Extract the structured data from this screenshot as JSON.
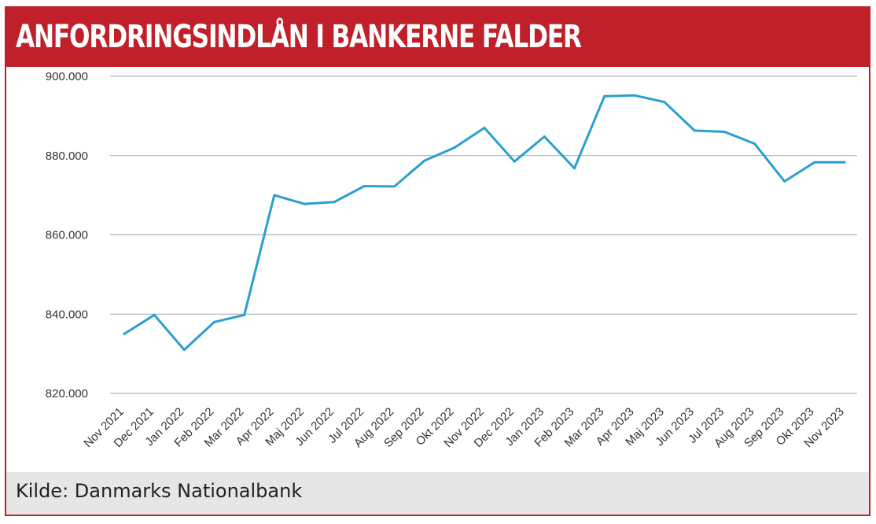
{
  "header": {
    "title": "ANFORDRINGSINDLÅN I BANKERNE FALDER"
  },
  "footer": {
    "source": "Kilde: Danmarks Nationalbank"
  },
  "colors": {
    "accent": "#c0202a",
    "line": "#2a9fd0",
    "grid": "#9aa8b0",
    "footer_bg": "#e6e6e6"
  },
  "chart_data": {
    "type": "line",
    "categories": [
      "Nov 2021",
      "Dec 2021",
      "Jan 2022",
      "Feb 2022",
      "Mar 2022",
      "Apr 2022",
      "Maj 2022",
      "Jun 2022",
      "Jul 2022",
      "Aug 2022",
      "Sep 2022",
      "Okt 2022",
      "Nov 2022",
      "Dec 2022",
      "Jan 2023",
      "Feb 2023",
      "Mar 2023",
      "Apr 2023",
      "Maj 2023",
      "Jun 2023",
      "Jul 2023",
      "Aug 2023",
      "Sep 2023",
      "Okt 2023",
      "Nov 2023"
    ],
    "values": [
      835000,
      839800,
      831000,
      838000,
      839800,
      870000,
      867800,
      868300,
      872300,
      872200,
      878700,
      882000,
      887000,
      878500,
      884800,
      876800,
      895000,
      895200,
      893500,
      886300,
      886000,
      883000,
      873500,
      878300,
      878300
    ],
    "ylim": [
      820000,
      900000
    ],
    "yticks": [
      820000,
      840000,
      860000,
      880000,
      900000
    ],
    "ytick_labels": [
      "820.000",
      "840.000",
      "860.000",
      "880.000",
      "900.000"
    ],
    "grid": true,
    "legend": "none"
  }
}
